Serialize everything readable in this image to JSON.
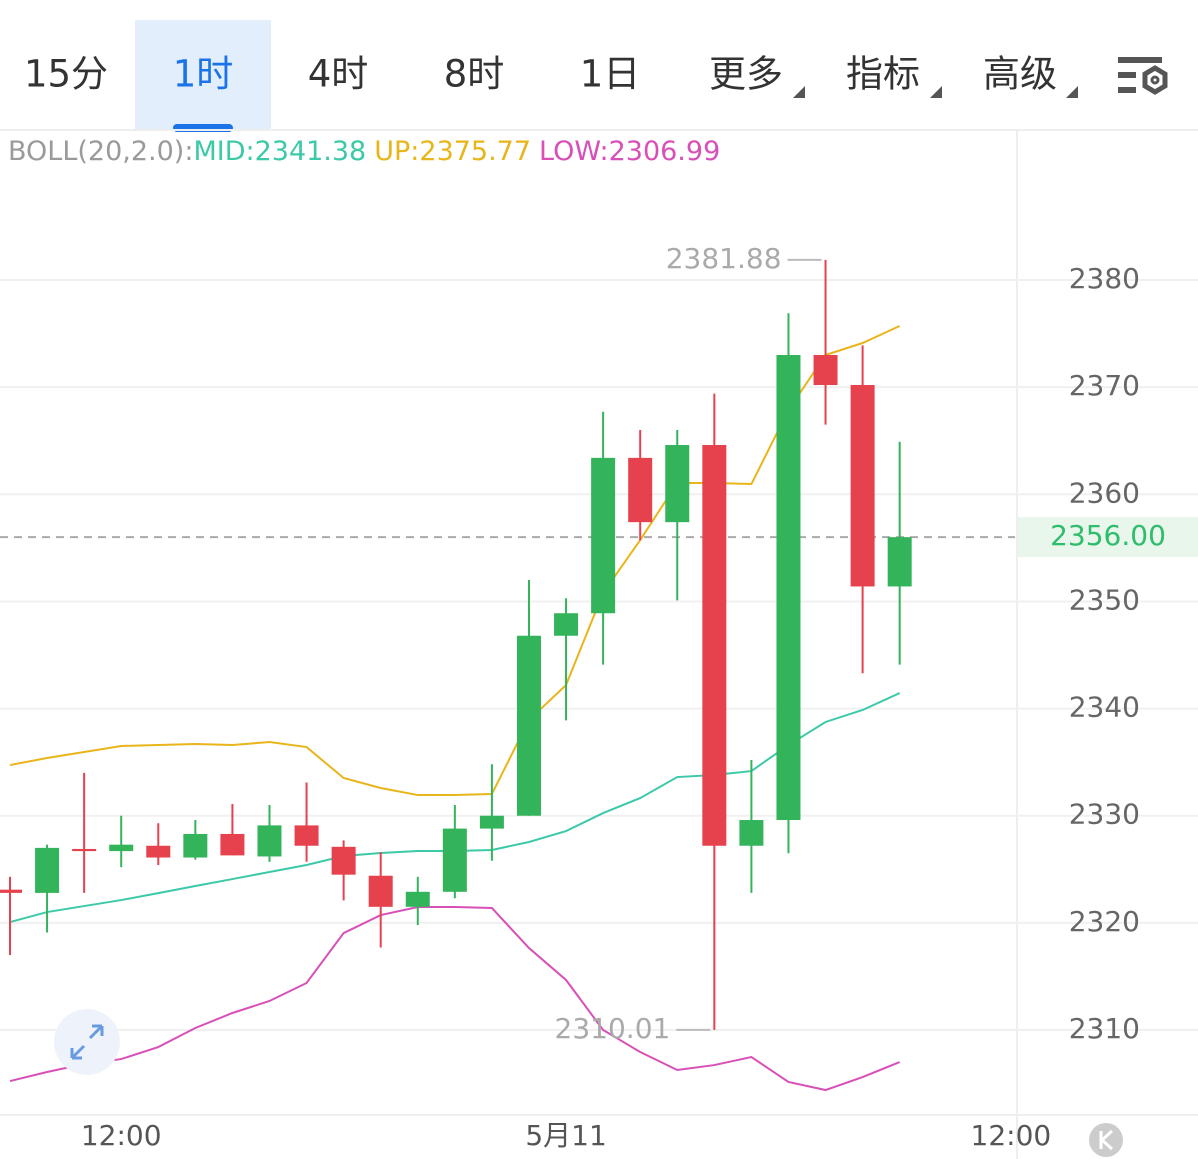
{
  "tabs": {
    "items": [
      "15分",
      "1时",
      "4时",
      "8时",
      "1日",
      "更多",
      "指标",
      "高级"
    ],
    "active": 1
  },
  "chart_data": {
    "type": "candlestick",
    "indicator_label": "BOLL(20,2.0):",
    "categories": [
      null,
      null,
      null,
      "12:00",
      null,
      null,
      null,
      null,
      null,
      null,
      null,
      null,
      null,
      null,
      null,
      "5月11",
      null,
      null,
      null,
      null,
      null,
      null,
      null,
      null,
      null,
      null,
      null,
      "12:00"
    ],
    "open": [
      2323.1,
      2322.8,
      2326.9,
      2326.7,
      2327.2,
      2326.1,
      2328.3,
      2326.2,
      2329.1,
      2327.1,
      2324.4,
      2321.5,
      2322.9,
      2328.8,
      2330.0,
      2346.8,
      2348.9,
      2363.4,
      2357.4,
      2364.6,
      2327.2,
      2329.6,
      2373.0,
      2370.2,
      2351.4,
      null,
      null,
      null
    ],
    "high": [
      2324.3,
      2327.3,
      2334.0,
      2330.0,
      2329.3,
      2329.6,
      2331.1,
      2331.0,
      2333.1,
      2327.7,
      2326.6,
      2324.3,
      2331.0,
      2334.8,
      2352.0,
      2350.3,
      2367.7,
      2366.0,
      2366.0,
      2369.4,
      2335.2,
      2376.9,
      2381.88,
      2373.9,
      2364.9,
      null,
      null,
      null
    ],
    "low": [
      2317.0,
      2319.1,
      2322.8,
      2325.2,
      2325.4,
      2325.9,
      2326.3,
      2325.7,
      2325.7,
      2322.1,
      2317.7,
      2319.8,
      2322.3,
      2325.8,
      2330.0,
      2338.9,
      2344.1,
      2355.7,
      2350.1,
      2310.01,
      2322.8,
      2326.5,
      2366.5,
      2343.3,
      2344.1,
      null,
      null,
      null
    ],
    "close": [
      2322.8,
      2327.0,
      2326.7,
      2327.3,
      2326.1,
      2328.3,
      2326.3,
      2329.1,
      2327.2,
      2324.5,
      2321.5,
      2322.9,
      2328.8,
      2330.0,
      2346.8,
      2348.9,
      2363.4,
      2357.4,
      2364.6,
      2327.2,
      2329.6,
      2373.0,
      2370.2,
      2351.4,
      2356.0,
      null,
      null,
      null
    ],
    "up_color": "#33b35a",
    "down_color": "#e5424d",
    "series": [
      {
        "name": "MID:2341.38",
        "color": "#3cc9a8",
        "values": [
          2320.08,
          2321.01,
          2321.57,
          2322.13,
          2322.78,
          2323.44,
          2324.09,
          2324.75,
          2325.4,
          2326.24,
          2326.52,
          2326.71,
          2326.71,
          2326.8,
          2327.55,
          2328.57,
          2330.25,
          2331.65,
          2333.61,
          2333.8,
          2334.17,
          2336.6,
          2338.75,
          2339.87,
          2341.45,
          null,
          null,
          null
        ]
      },
      {
        "name": "UP:2375.77",
        "color": "#e8b51a",
        "values": [
          2334.73,
          2335.39,
          2335.95,
          2336.51,
          2336.6,
          2336.69,
          2336.6,
          2336.88,
          2336.41,
          2333.52,
          2332.59,
          2331.93,
          2331.93,
          2332.03,
          2338.93,
          2342.2,
          2350.79,
          2355.73,
          2361.05,
          2361.05,
          2360.96,
          2367.87,
          2373.0,
          2374.12,
          2375.71,
          null,
          null,
          null
        ]
      },
      {
        "name": "LOW:2306.99",
        "color": "#d94fb8",
        "values": [
          2305.24,
          2306.08,
          2306.83,
          2307.29,
          2308.41,
          2310.19,
          2311.59,
          2312.71,
          2314.39,
          2319.05,
          2320.73,
          2321.48,
          2321.48,
          2321.39,
          2317.65,
          2314.67,
          2310.0,
          2307.95,
          2306.27,
          2306.73,
          2307.48,
          2305.15,
          2304.4,
          2305.61,
          2307.01,
          null,
          null,
          null
        ]
      }
    ],
    "ylim": [
      2302.07,
      2394
    ],
    "yticks": [
      2310,
      2320,
      2330,
      2340,
      2350,
      2360,
      2370,
      2380
    ],
    "grid": true,
    "last_price": {
      "value": 2356,
      "label": "2356.00"
    }
  }
}
